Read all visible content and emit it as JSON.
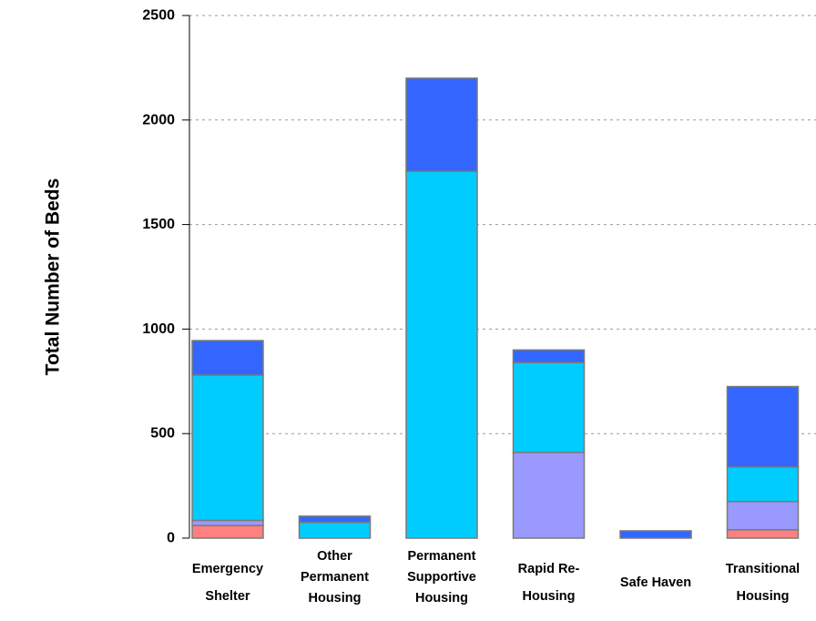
{
  "chart_data": {
    "type": "bar",
    "stacked": true,
    "title": "",
    "xlabel": "",
    "ylabel": "Total Number of Beds",
    "ylim": [
      0,
      2500
    ],
    "yticks": [
      0,
      500,
      1000,
      1500,
      2000,
      2500
    ],
    "grid": true,
    "categories": [
      [
        "Emergency",
        "Shelter"
      ],
      [
        "Other",
        "Permanent",
        "Housing"
      ],
      [
        "Permanent",
        "Supportive",
        "Housing"
      ],
      [
        "Rapid Re-",
        "Housing"
      ],
      [
        "Safe Haven"
      ],
      [
        "Transitional",
        "Housing"
      ]
    ],
    "series": [
      {
        "color": "#ff8080",
        "values": [
          60,
          0,
          0,
          0,
          0,
          40
        ]
      },
      {
        "color": "#9999ff",
        "values": [
          25,
          0,
          0,
          410,
          0,
          135
        ]
      },
      {
        "color": "#00ccff",
        "values": [
          695,
          75,
          1755,
          430,
          0,
          165
        ]
      },
      {
        "color": "#3366ff",
        "values": [
          165,
          30,
          445,
          60,
          35,
          385
        ]
      }
    ]
  }
}
